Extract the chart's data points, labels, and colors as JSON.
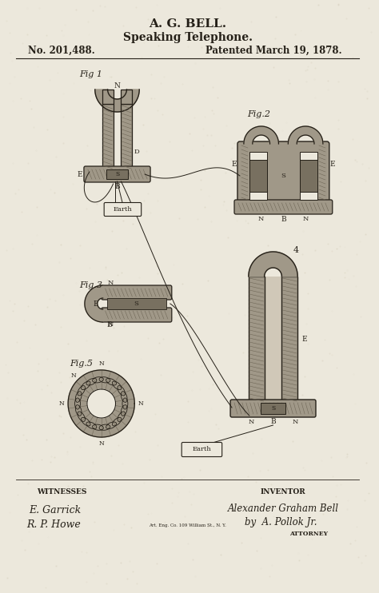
{
  "bg_color": "#ece8dc",
  "title_line1": "A. G. BELL.",
  "title_line2": "Speaking Telephone.",
  "patent_left": "No. 201,488.",
  "patent_right": "Patented March 19, 1878.",
  "witnesses_label": "WITNESSES",
  "inventor_label": "INVENTOR",
  "witness_sig1": "E. Garrick",
  "witness_sig2": "R. P. Howe",
  "inventor_name": "Alexander Graham Bell",
  "inventor_by": "by  A. Pollok Jr.",
  "attorney_label": "ATTORNEY",
  "earth_label": "Earth",
  "small_print": "Art. Eng. Co. 109 William St., N. Y.",
  "ink_color": "#252018",
  "hatch_color": "#706858",
  "mid_gray": "#a09888",
  "dark_gray": "#787060"
}
